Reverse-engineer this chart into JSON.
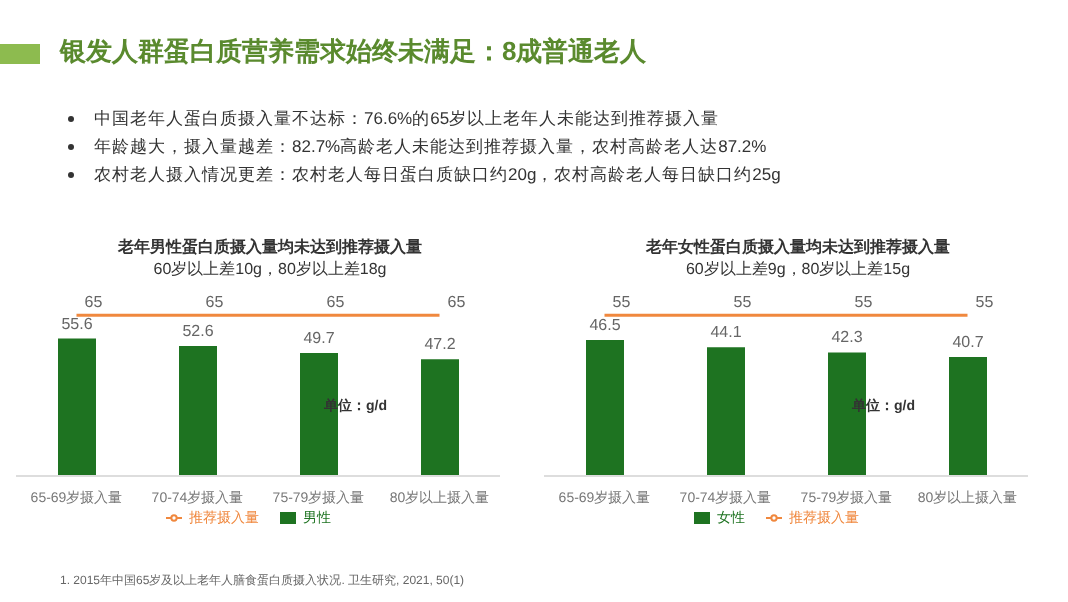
{
  "chart_data": [
    {
      "type": "other",
      "title": "银发人群蛋白质营养需求始终未满足：8成普通老人",
      "annotations": [
        "中国老年人蛋白质摄入量不达标：76.6%的65岁以上老年人未能达到推荐摄入量",
        "年龄越大，摄入量越差：82.7%高龄老人未能达到推荐摄入量，农村高龄老人达87.2%",
        "农村老人摄入情况更差：农村老人每日蛋白质缺口约20g，农村高龄老人每日缺口约25g"
      ]
    },
    {
      "type": "bar",
      "title": "老年男性蛋白质摄入量均未达到推荐摄入量",
      "subtitle": "60岁以上差10g，80岁以上差18g",
      "categories": [
        "65-69岁摄入量",
        "70-74岁摄入量",
        "75-79岁摄入量",
        "80岁以上摄入量"
      ],
      "series": [
        {
          "name": "男性",
          "color": "#1e7321",
          "values": [
            55.6,
            52.6,
            49.7,
            47.2
          ]
        },
        {
          "name": "推荐摄入量",
          "type": "line",
          "color": "#f0883e",
          "values": [
            65,
            65,
            65,
            65
          ]
        }
      ],
      "data_labels": true,
      "legend": "bottom",
      "marker": "none",
      "annotations": [
        "单位：g/d",
        "1. 2015年中国65岁及以上老年人膳食蛋白质摄入状况. 卫生研究, 2021, 50(1)"
      ]
    },
    {
      "type": "bar",
      "title": "老年女性蛋白质摄入量均未达到推荐摄入量",
      "subtitle": "60岁以上差9g，80岁以上差15g",
      "categories": [
        "65-69岁摄入量",
        "70-74岁摄入量",
        "75-79岁摄入量",
        "80岁以上摄入量"
      ],
      "series": [
        {
          "name": "女性",
          "color": "#1e7321",
          "values": [
            46.5,
            44.1,
            42.3,
            40.7
          ]
        },
        {
          "name": "推荐摄入量",
          "type": "line",
          "color": "#f0883e",
          "values": [
            55,
            55,
            55,
            55
          ]
        }
      ],
      "data_labels": true,
      "legend": "bottom",
      "marker": "none",
      "annotations": [
        "单位：g/d"
      ]
    }
  ]
}
